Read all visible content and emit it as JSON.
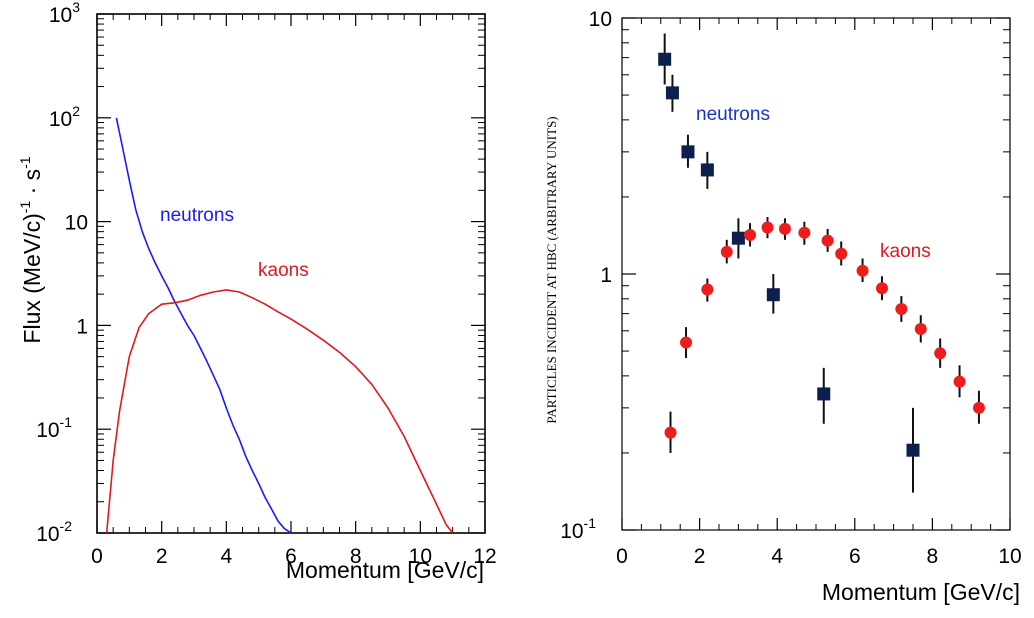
{
  "chart_data": [
    {
      "type": "line",
      "ylabel_main": "Flux (MeV/c)",
      "ylabel_sup1": "-1",
      "ylabel_mid": " · s",
      "ylabel_sup2": "-1",
      "xlabel": "Momentum [GeV/c]",
      "xlim": [
        0,
        12
      ],
      "ylim": [
        0.01,
        1000
      ],
      "yscale": "log",
      "x_ticks": [
        "0",
        "2",
        "4",
        "6",
        "8",
        "10",
        "12"
      ],
      "y_ticks": [
        {
          "base": "10",
          "exp": "-2",
          "value": 0.01
        },
        {
          "base": "10",
          "exp": "-1",
          "value": 0.1
        },
        {
          "base": "1",
          "exp": "",
          "value": 1
        },
        {
          "base": "10",
          "exp": "",
          "value": 10
        },
        {
          "base": "10",
          "exp": "2",
          "value": 100
        },
        {
          "base": "10",
          "exp": "3",
          "value": 1000
        }
      ],
      "annotations": {
        "neutrons": "neutrons",
        "kaons": "kaons"
      },
      "series": [
        {
          "name": "neutrons",
          "color": "#1a1aff",
          "x": [
            0.6,
            0.8,
            1.0,
            1.2,
            1.4,
            1.6,
            1.8,
            2.0,
            2.2,
            2.4,
            2.6,
            2.8,
            3.0,
            3.2,
            3.4,
            3.6,
            3.8,
            4.0,
            4.2,
            4.4,
            4.6,
            4.8,
            5.0,
            5.2,
            5.4,
            5.6,
            5.8,
            6.0
          ],
          "y": [
            100,
            50,
            25,
            13,
            8,
            5.5,
            4,
            3,
            2.3,
            1.7,
            1.3,
            1.0,
            0.8,
            0.6,
            0.45,
            0.33,
            0.24,
            0.16,
            0.11,
            0.08,
            0.055,
            0.04,
            0.03,
            0.022,
            0.017,
            0.013,
            0.011,
            0.01
          ]
        },
        {
          "name": "kaons",
          "color": "#e0191f",
          "x": [
            0.3,
            0.5,
            0.7,
            1.0,
            1.3,
            1.6,
            2.0,
            2.4,
            2.8,
            3.2,
            3.6,
            4.0,
            4.4,
            4.8,
            5.2,
            5.6,
            6.0,
            6.5,
            7.0,
            7.5,
            8.0,
            8.5,
            9.0,
            9.5,
            10.0,
            10.4,
            10.8,
            11.0
          ],
          "y": [
            0.01,
            0.05,
            0.15,
            0.5,
            0.95,
            1.3,
            1.6,
            1.65,
            1.75,
            1.95,
            2.1,
            2.2,
            2.1,
            1.85,
            1.6,
            1.35,
            1.15,
            0.92,
            0.72,
            0.55,
            0.4,
            0.27,
            0.16,
            0.085,
            0.04,
            0.022,
            0.012,
            0.01
          ]
        }
      ]
    },
    {
      "type": "scatter",
      "ylabel": "PARTICLES INCIDENT AT HBC (ARBITRARY UNITS)",
      "xlabel": "Momentum [GeV/c]",
      "xlim": [
        0,
        10
      ],
      "ylim": [
        0.1,
        10
      ],
      "yscale": "log",
      "x_ticks": [
        "0",
        "2",
        "4",
        "6",
        "8",
        "10"
      ],
      "y_ticks": [
        {
          "base": "10",
          "exp": "-1",
          "value": 0.1
        },
        {
          "base": "1",
          "exp": "",
          "value": 1
        },
        {
          "base": "10",
          "exp": "",
          "value": 10
        }
      ],
      "annotations": {
        "neutrons": "neutrons",
        "kaons": "kaons"
      },
      "series": [
        {
          "name": "neutrons",
          "color": "#0d1f4d",
          "marker": "square",
          "points": [
            {
              "x": 1.1,
              "y": 6.9,
              "lo": 5.5,
              "hi": 8.7
            },
            {
              "x": 1.3,
              "y": 5.1,
              "lo": 4.3,
              "hi": 6.0
            },
            {
              "x": 1.7,
              "y": 3.0,
              "lo": 2.6,
              "hi": 3.5
            },
            {
              "x": 2.2,
              "y": 2.55,
              "lo": 2.15,
              "hi": 3.0
            },
            {
              "x": 3.0,
              "y": 1.38,
              "lo": 1.15,
              "hi": 1.65
            },
            {
              "x": 3.9,
              "y": 0.83,
              "lo": 0.7,
              "hi": 1.0
            },
            {
              "x": 5.2,
              "y": 0.34,
              "lo": 0.26,
              "hi": 0.43
            },
            {
              "x": 7.5,
              "y": 0.205,
              "lo": 0.14,
              "hi": 0.3
            }
          ]
        },
        {
          "name": "kaons",
          "color": "#ee1c1c",
          "marker": "circle",
          "points": [
            {
              "x": 1.25,
              "y": 0.24,
              "lo": 0.2,
              "hi": 0.29
            },
            {
              "x": 1.65,
              "y": 0.54,
              "lo": 0.47,
              "hi": 0.62
            },
            {
              "x": 2.2,
              "y": 0.87,
              "lo": 0.78,
              "hi": 0.96
            },
            {
              "x": 2.7,
              "y": 1.22,
              "lo": 1.1,
              "hi": 1.36
            },
            {
              "x": 3.3,
              "y": 1.42,
              "lo": 1.28,
              "hi": 1.58
            },
            {
              "x": 3.75,
              "y": 1.52,
              "lo": 1.38,
              "hi": 1.67
            },
            {
              "x": 4.2,
              "y": 1.5,
              "lo": 1.36,
              "hi": 1.65
            },
            {
              "x": 4.7,
              "y": 1.45,
              "lo": 1.3,
              "hi": 1.6
            },
            {
              "x": 5.3,
              "y": 1.35,
              "lo": 1.22,
              "hi": 1.5
            },
            {
              "x": 5.65,
              "y": 1.2,
              "lo": 1.08,
              "hi": 1.34
            },
            {
              "x": 6.2,
              "y": 1.03,
              "lo": 0.93,
              "hi": 1.15
            },
            {
              "x": 6.7,
              "y": 0.88,
              "lo": 0.79,
              "hi": 0.98
            },
            {
              "x": 7.2,
              "y": 0.73,
              "lo": 0.65,
              "hi": 0.82
            },
            {
              "x": 7.7,
              "y": 0.61,
              "lo": 0.54,
              "hi": 0.69
            },
            {
              "x": 8.2,
              "y": 0.49,
              "lo": 0.43,
              "hi": 0.56
            },
            {
              "x": 8.7,
              "y": 0.38,
              "lo": 0.33,
              "hi": 0.44
            },
            {
              "x": 9.2,
              "y": 0.3,
              "lo": 0.26,
              "hi": 0.35
            }
          ]
        }
      ]
    }
  ]
}
